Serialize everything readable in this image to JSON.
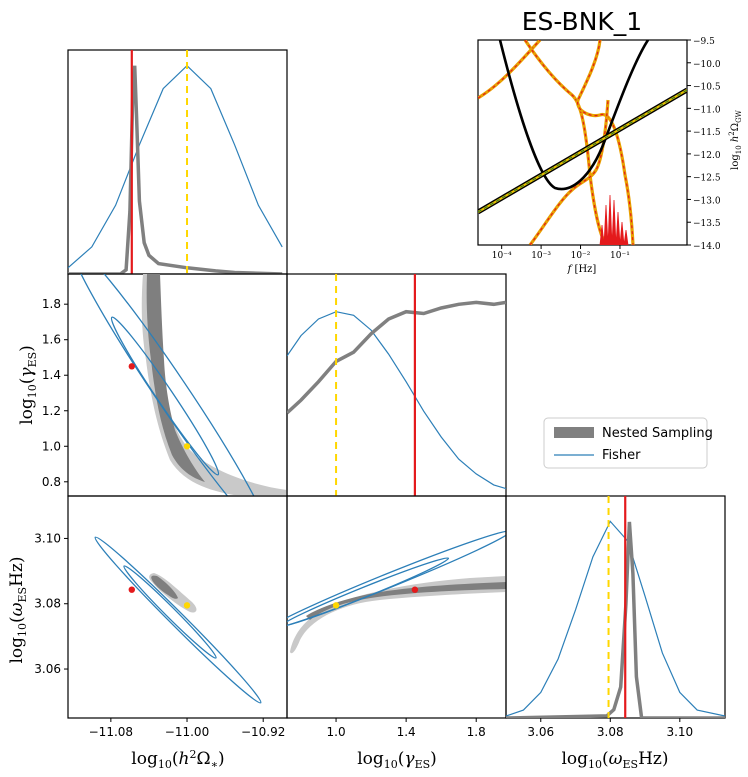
{
  "title": "ES-BNK_1",
  "colors": {
    "nested": "#808080",
    "nested_light": "#c9c9c9",
    "fisher": "#2c7fb8",
    "true_value": "#e41a1c",
    "injected": "#ffd700",
    "spectrum_line": "#000000",
    "spectrum_band": "#e8a000"
  },
  "legend": {
    "nested": "Nested Sampling",
    "fisher": "Fisher"
  },
  "chart_data": [
    {
      "id": "marg-h2omega",
      "type": "line",
      "title": "",
      "xlabel": "",
      "xlim": [
        -11.125,
        -10.895
      ],
      "series": [
        {
          "name": "Nested Sampling",
          "x": [
            -11.125,
            -11.07,
            -11.064,
            -11.06,
            -11.057,
            -11.055,
            -11.053,
            -11.05,
            -11.045,
            -11.04,
            -11.03,
            -11.0,
            -10.97,
            -10.95,
            -10.9
          ],
          "values": [
            0,
            0,
            0.02,
            0.3,
            0.85,
            1.0,
            0.75,
            0.35,
            0.15,
            0.09,
            0.05,
            0.03,
            0.015,
            0.007,
            0.0
          ]
        },
        {
          "name": "Fisher",
          "x": [
            -11.125,
            -11.1,
            -11.075,
            -11.05,
            -11.025,
            -11.0,
            -10.975,
            -10.95,
            -10.925,
            -10.9
          ],
          "values": [
            0.03,
            0.13,
            0.33,
            0.62,
            0.89,
            1.0,
            0.89,
            0.62,
            0.33,
            0.13
          ]
        }
      ],
      "true_value": -11.058,
      "injected_value": -11.0
    },
    {
      "id": "marg-gamma",
      "type": "line",
      "xlim": [
        0.72,
        1.97
      ],
      "series": [
        {
          "name": "Nested Sampling",
          "x": [
            0.72,
            0.8,
            0.9,
            1.0,
            1.1,
            1.2,
            1.3,
            1.4,
            1.5,
            1.6,
            1.7,
            1.8,
            1.9,
            1.97
          ],
          "values": [
            0.45,
            0.52,
            0.62,
            0.73,
            0.78,
            0.88,
            0.96,
            1.0,
            0.99,
            1.02,
            1.04,
            1.05,
            1.04,
            1.05
          ]
        },
        {
          "name": "Fisher",
          "x": [
            0.72,
            0.8,
            0.9,
            1.0,
            1.1,
            1.2,
            1.3,
            1.4,
            1.5,
            1.6,
            1.7,
            1.8,
            1.9,
            1.97
          ],
          "values": [
            0.76,
            0.87,
            0.96,
            1.0,
            0.98,
            0.9,
            0.77,
            0.62,
            0.46,
            0.32,
            0.2,
            0.12,
            0.06,
            0.04
          ]
        }
      ],
      "true_value": 1.45,
      "injected_value": 1.0
    },
    {
      "id": "marg-omega",
      "type": "line",
      "xlim": [
        3.05,
        3.113
      ],
      "series": [
        {
          "name": "Nested Sampling",
          "x": [
            3.05,
            3.079,
            3.081,
            3.083,
            3.0845,
            3.0855,
            3.0865,
            3.0875,
            3.089,
            3.113
          ],
          "values": [
            0,
            0.01,
            0.04,
            0.15,
            0.55,
            0.95,
            0.7,
            0.2,
            0.0,
            0
          ]
        },
        {
          "name": "Fisher",
          "x": [
            3.05,
            3.055,
            3.06,
            3.065,
            3.07,
            3.075,
            3.08,
            3.085,
            3.09,
            3.095,
            3.1,
            3.105,
            3.113
          ],
          "values": [
            0.01,
            0.04,
            0.13,
            0.3,
            0.55,
            0.82,
            1.0,
            0.9,
            0.62,
            0.33,
            0.13,
            0.04,
            0.01
          ]
        }
      ],
      "true_value": 3.0843,
      "injected_value": 3.0795
    },
    {
      "id": "joint-h2omega-gamma",
      "type": "scatter",
      "xlim": [
        -11.125,
        -10.895
      ],
      "ylim": [
        0.72,
        1.97
      ],
      "ylabel": "log10(γES)",
      "yticks": [
        "1.8",
        "1.6",
        "1.4",
        "1.2",
        "1.0",
        "0.8"
      ],
      "yticks_values": [
        1.8,
        1.6,
        1.4,
        1.2,
        1.0,
        0.8
      ],
      "true_point": [
        -11.058,
        1.45
      ],
      "injected_point": [
        -11.0,
        1.0
      ]
    },
    {
      "id": "joint-h2omega-omega",
      "type": "scatter",
      "xlim": [
        -11.125,
        -10.895
      ],
      "ylim": [
        3.045,
        3.113
      ],
      "xlabel": "log10(h²Ω*)",
      "ylabel": "log10(ωESHz)",
      "xticks": [
        "−11.08",
        "−11.00",
        "−10.92"
      ],
      "xticks_values": [
        -11.08,
        -11.0,
        -10.92
      ],
      "yticks": [
        "3.10",
        "3.08",
        "3.06"
      ],
      "yticks_values": [
        3.1,
        3.08,
        3.06
      ],
      "true_point": [
        -11.058,
        3.0843
      ],
      "injected_point": [
        -11.0,
        3.0795
      ]
    },
    {
      "id": "joint-gamma-omega",
      "type": "scatter",
      "xlim": [
        0.72,
        1.97
      ],
      "ylim": [
        3.045,
        3.113
      ],
      "xlabel": "log10(γES)",
      "xticks": [
        "1.0",
        "1.4",
        "1.8"
      ],
      "xticks_values": [
        1.0,
        1.4,
        1.8
      ],
      "true_point": [
        1.45,
        3.0843
      ],
      "injected_point": [
        1.0,
        3.0795
      ]
    },
    {
      "id": "inset-spectrum",
      "type": "line",
      "title": "ES-BNK_1",
      "xlabel": "f [Hz]",
      "ylabel": "log10 h²ΩGW",
      "xlim_log10": [
        -4.6,
        0.7
      ],
      "ylim": [
        -14.0,
        -9.5
      ],
      "xticks": [
        "10⁻⁴",
        "10⁻³",
        "10⁻²",
        "10⁻¹"
      ],
      "xticks_values": [
        -4,
        -3,
        -2,
        -1
      ],
      "yticks": [
        "−9.5",
        "−10.0",
        "−10.5",
        "−11.0",
        "−11.5",
        "−12.0",
        "−12.5",
        "−13.0",
        "−13.5",
        "−14.0"
      ],
      "yticks_values": [
        -9.5,
        -10.0,
        -10.5,
        -11.0,
        -11.5,
        -12.0,
        -12.5,
        -13.0,
        -13.5,
        -14.0
      ]
    }
  ],
  "bottom_labels": {
    "x1": "log10(h²Ω*)",
    "x2": "log10(γES)",
    "x3": "log10(ωESHz)"
  }
}
